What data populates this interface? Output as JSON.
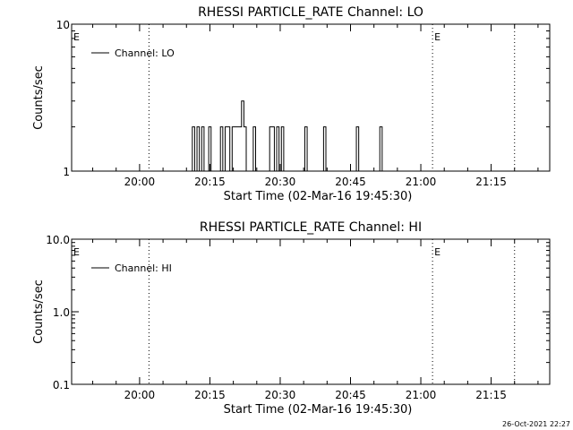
{
  "chart_data": [
    {
      "type": "line",
      "title": "RHESSI PARTICLE_RATE Channel: LO",
      "xlabel": "Start Time (02-Mar-16 19:45:30)",
      "ylabel": "Counts/sec",
      "y_scale": "log",
      "ylim": [
        1,
        10
      ],
      "y_ticks": [
        {
          "value": 1,
          "label": "1"
        },
        {
          "value": 10,
          "label": "10"
        }
      ],
      "xlim": [
        "19:45:30",
        "21:27:30"
      ],
      "x_ticks": [
        "20:00",
        "20:15",
        "20:30",
        "20:45",
        "21:00",
        "21:15"
      ],
      "legend": {
        "position": "top-left",
        "entries": [
          "Channel: LO"
        ]
      },
      "series": [
        {
          "name": "Channel: LO",
          "x": [
            "20:10:30",
            "20:11:00",
            "20:11:30",
            "20:12:00",
            "20:12:30",
            "20:13:00",
            "20:13:30",
            "20:14:00",
            "20:14:30",
            "20:15:00",
            "20:15:30",
            "20:16:00",
            "20:16:30",
            "20:17:00",
            "20:17:30",
            "20:18:00",
            "20:18:30",
            "20:19:00",
            "20:19:30",
            "20:20:00",
            "20:20:30",
            "20:21:00",
            "20:21:30",
            "20:22:00",
            "20:22:30",
            "20:23:00",
            "20:23:30",
            "20:24:00",
            "20:24:30",
            "20:25:00",
            "20:25:30",
            "20:26:00",
            "20:26:30",
            "20:27:00",
            "20:27:30",
            "20:28:00",
            "20:28:30",
            "20:29:00",
            "20:29:30",
            "20:30:00",
            "20:30:30",
            "20:31:00",
            "20:31:30",
            "20:32:00",
            "20:32:30",
            "20:33:00",
            "20:33:30",
            "20:34:00",
            "20:34:30",
            "20:35:00",
            "20:35:30",
            "20:36:00",
            "20:36:30",
            "20:37:00",
            "20:37:30",
            "20:38:00",
            "20:38:30",
            "20:39:00",
            "20:39:30",
            "20:40:00",
            "20:40:30",
            "20:41:00",
            "20:41:30",
            "20:42:00",
            "20:42:30",
            "20:43:00",
            "20:43:30",
            "20:44:00",
            "20:44:30",
            "20:45:00",
            "20:45:30",
            "20:46:00",
            "20:46:30",
            "20:47:00",
            "20:47:30",
            "20:48:00",
            "20:48:30",
            "20:49:00",
            "20:49:30",
            "20:50:00",
            "20:50:30",
            "20:51:00",
            "20:51:30",
            "20:52:00",
            "20:52:30"
          ],
          "y": [
            1,
            1,
            2,
            1,
            2,
            1,
            2,
            1,
            1,
            2,
            1,
            1,
            1,
            1,
            2,
            1,
            2,
            2,
            1,
            2,
            2,
            2,
            2,
            3,
            2,
            1,
            1,
            1,
            2,
            1,
            1,
            1,
            1,
            1,
            1,
            2,
            2,
            1,
            2,
            1,
            2,
            1,
            1,
            1,
            1,
            1,
            1,
            1,
            1,
            1,
            2,
            1,
            1,
            1,
            1,
            1,
            1,
            1,
            2,
            1,
            1,
            1,
            1,
            1,
            1,
            1,
            1,
            1,
            1,
            1,
            1,
            1,
            2,
            1,
            1,
            1,
            1,
            1,
            1,
            1,
            1,
            1,
            2,
            1,
            1
          ]
        }
      ],
      "markers": [
        {
          "time": "19:45:30",
          "label": "E",
          "line": false
        },
        {
          "time": "20:02:00",
          "label": "",
          "line": true
        },
        {
          "time": "21:02:30",
          "label": "E",
          "line": true
        },
        {
          "time": "21:20:00",
          "label": "",
          "line": true
        }
      ]
    },
    {
      "type": "line",
      "title": "RHESSI PARTICLE_RATE Channel: HI",
      "xlabel": "Start Time (02-Mar-16 19:45:30)",
      "ylabel": "Counts/sec",
      "y_scale": "log",
      "ylim": [
        0.1,
        10
      ],
      "y_ticks": [
        {
          "value": 0.1,
          "label": "0.1"
        },
        {
          "value": 1,
          "label": "1.0"
        },
        {
          "value": 10,
          "label": "10.0"
        }
      ],
      "xlim": [
        "19:45:30",
        "21:27:30"
      ],
      "x_ticks": [
        "20:00",
        "20:15",
        "20:30",
        "20:45",
        "21:00",
        "21:15"
      ],
      "legend": {
        "position": "top-left",
        "entries": [
          "Channel: HI"
        ]
      },
      "series": [
        {
          "name": "Channel: HI",
          "x": [],
          "y": []
        }
      ],
      "markers": [
        {
          "time": "19:45:30",
          "label": "E",
          "line": false
        },
        {
          "time": "20:02:00",
          "label": "",
          "line": true
        },
        {
          "time": "21:02:30",
          "label": "E",
          "line": true
        },
        {
          "time": "21:20:00",
          "label": "",
          "line": true
        }
      ]
    }
  ],
  "footer": {
    "timestamp": "26-Oct-2021 22:27"
  }
}
